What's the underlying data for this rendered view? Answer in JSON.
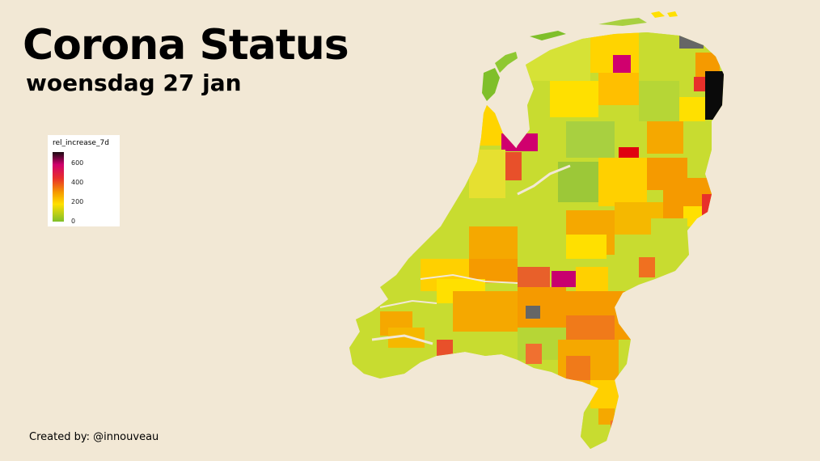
{
  "title": "Corona Status",
  "subtitle": "woensdag 27 jan",
  "credit": "Created by: @innouveau",
  "legend": {
    "title": "rel_increase_7d",
    "labels": [
      "600",
      "400",
      "200",
      "0"
    ]
  },
  "colors": {
    "background": "#f2e8d5",
    "low": "#7fbf2a",
    "mid_low": "#ffe000",
    "mid": "#f59a00",
    "high": "#e8302a",
    "very_high": "#d0006e",
    "max": "#1a0a10",
    "no_data": "#666666"
  }
}
